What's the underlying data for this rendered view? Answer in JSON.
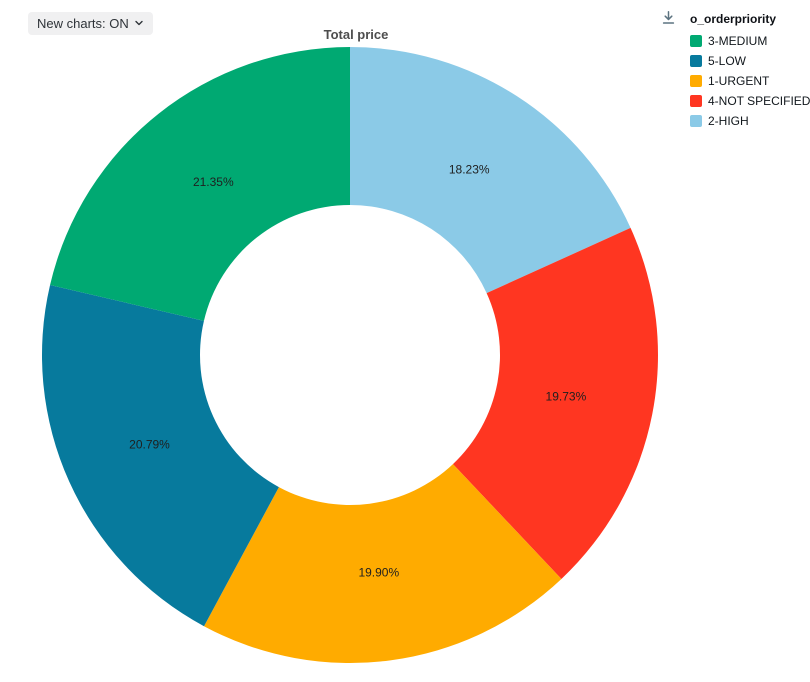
{
  "header": {
    "new_charts_label": "New charts: ON"
  },
  "icons": {
    "chevron_down": "chevron-down",
    "download": "download-arrow-to-line"
  },
  "legend": {
    "title": "o_orderpriority"
  },
  "chart_data": {
    "type": "pie",
    "subtype": "donut",
    "title": "Total price",
    "legend_title": "o_orderpriority",
    "legend_position": "top-right",
    "start_angle": "top",
    "clockwise_order_from_top": [
      "2-HIGH",
      "4-NOT SPECIFIED",
      "1-URGENT",
      "5-LOW",
      "3-MEDIUM"
    ],
    "inner_radius_ratio": 0.49,
    "slices": [
      {
        "label": "3-MEDIUM",
        "value": 21.35,
        "text": "21.35%",
        "color": "#00A972"
      },
      {
        "label": "5-LOW",
        "value": 20.79,
        "text": "20.79%",
        "color": "#077A9D"
      },
      {
        "label": "1-URGENT",
        "value": 19.9,
        "text": "19.90%",
        "color": "#FFAB00"
      },
      {
        "label": "4-NOT SPECIFIED",
        "value": 19.73,
        "text": "19.73%",
        "color": "#FF3621"
      },
      {
        "label": "2-HIGH",
        "value": 18.23,
        "text": "18.23%",
        "color": "#8BCAE7"
      }
    ]
  },
  "colors": {
    "pill_bg": "#f0f0f1",
    "pill_text": "#2e3338",
    "title_text": "#4d4d4d",
    "legend_text": "#11171c",
    "download_icon": "#5c7380",
    "slice_label_text": "#1f1f1f"
  }
}
